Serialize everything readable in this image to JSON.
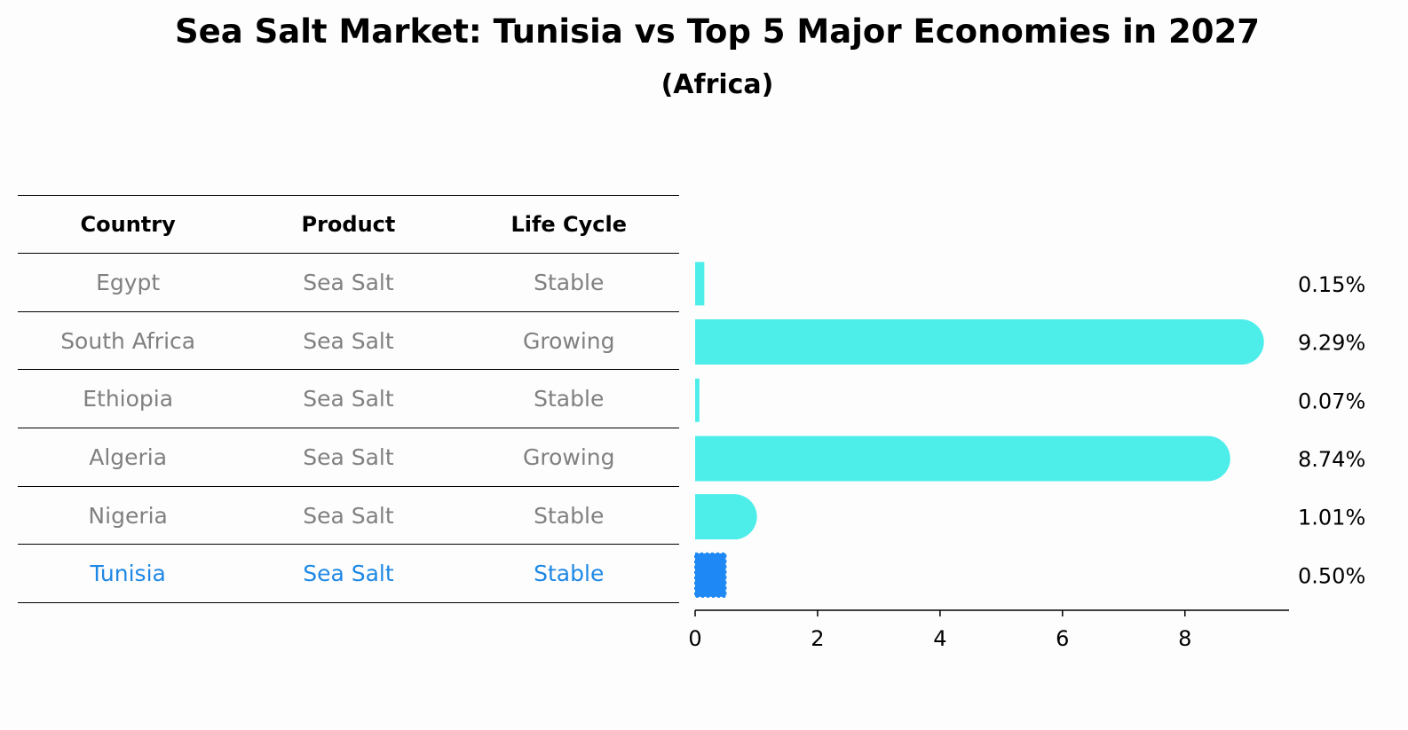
{
  "chart_data": {
    "type": "bar",
    "orientation": "horizontal",
    "title": "Sea Salt Market: Tunisia vs Top 5 Major Economies in 2027",
    "subtitle": "(Africa)",
    "categories": [
      "Egypt",
      "South Africa",
      "Ethiopia",
      "Algeria",
      "Nigeria",
      "Tunisia"
    ],
    "values": [
      0.15,
      9.29,
      0.07,
      8.74,
      1.01,
      0.5
    ],
    "value_labels": [
      "0.15%",
      "9.29%",
      "0.07%",
      "8.74%",
      "1.01%",
      "0.50%"
    ],
    "xlim": [
      0,
      9.7
    ],
    "xticks": [
      0,
      2,
      4,
      6,
      8
    ],
    "xlabel": "",
    "ylabel": "",
    "highlight": "Tunisia",
    "colors": {
      "bar": "#4deeea",
      "highlight_bar": "#1e88f5",
      "highlight_text": "#1e88e5",
      "muted_text": "#808080"
    }
  },
  "table": {
    "headers": [
      "Country",
      "Product",
      "Life Cycle"
    ],
    "rows": [
      {
        "country": "Egypt",
        "product": "Sea Salt",
        "life_cycle": "Stable"
      },
      {
        "country": "South Africa",
        "product": "Sea Salt",
        "life_cycle": "Growing"
      },
      {
        "country": "Ethiopia",
        "product": "Sea Salt",
        "life_cycle": "Stable"
      },
      {
        "country": "Algeria",
        "product": "Sea Salt",
        "life_cycle": "Growing"
      },
      {
        "country": "Nigeria",
        "product": "Sea Salt",
        "life_cycle": "Stable"
      },
      {
        "country": "Tunisia",
        "product": "Sea Salt",
        "life_cycle": "Stable"
      }
    ]
  }
}
